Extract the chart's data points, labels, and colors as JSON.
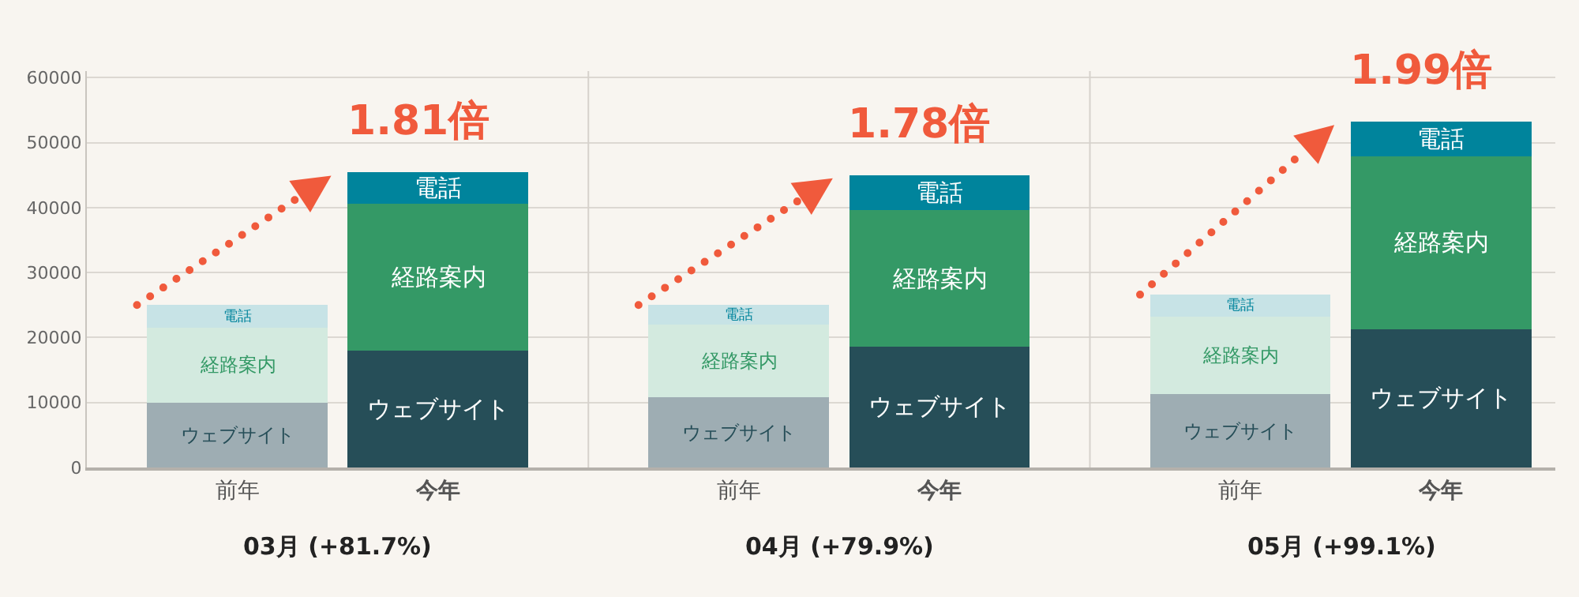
{
  "chart_data": {
    "type": "bar",
    "stacked": true,
    "categories": [
      "前年",
      "今年",
      "前年",
      "今年",
      "前年",
      "今年"
    ],
    "series": [
      {
        "name": "ウェブサイト",
        "color": "#264e58",
        "colors": [
          "#9eadb3",
          "#264e58",
          "#9eadb3",
          "#264e58",
          "#9eadb3",
          "#264e58"
        ],
        "values": [
          10000,
          18000,
          10800,
          18600,
          11300,
          21300
        ]
      },
      {
        "name": "経路案内",
        "color": "#349966",
        "colors": [
          "#d3eadf",
          "#349966",
          "#d3eadf",
          "#349966",
          "#d3eadf",
          "#349966"
        ],
        "values": [
          11500,
          22600,
          11200,
          21000,
          11900,
          26600
        ]
      },
      {
        "name": "電話",
        "color": "#00849c",
        "colors": [
          "#c7e3e6",
          "#00849c",
          "#c7e3e6",
          "#00849c",
          "#c7e3e6",
          "#00849c"
        ],
        "values": [
          3500,
          4800,
          3000,
          5400,
          3400,
          5300
        ]
      }
    ],
    "annotations": [
      "03月 (+81.7%)",
      "04月 (+79.9%)",
      "05月 (+99.1%)",
      "1.81倍",
      "1.78倍",
      "1.99倍"
    ],
    "ylim": [
      0,
      61000
    ],
    "yticks": [
      0,
      10000,
      20000,
      30000,
      40000,
      50000,
      60000
    ],
    "grid": "y",
    "legend": false
  }
}
